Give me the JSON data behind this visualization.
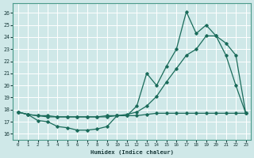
{
  "xlabel": "Humidex (Indice chaleur)",
  "bg_color": "#cfe8e8",
  "grid_color": "#ffffff",
  "line_color": "#1a6b5a",
  "xlim": [
    -0.5,
    23.5
  ],
  "ylim": [
    15.5,
    26.8
  ],
  "yticks": [
    16,
    17,
    18,
    19,
    20,
    21,
    22,
    23,
    24,
    25,
    26
  ],
  "xticks": [
    0,
    1,
    2,
    3,
    4,
    5,
    6,
    7,
    8,
    9,
    10,
    11,
    12,
    13,
    14,
    15,
    16,
    17,
    18,
    19,
    20,
    21,
    22,
    23
  ],
  "series_max_x": [
    0,
    1,
    2,
    3,
    4,
    5,
    6,
    7,
    8,
    9,
    10,
    11,
    12,
    13,
    14,
    15,
    16,
    17,
    18,
    19,
    20,
    21,
    22,
    23
  ],
  "series_max_y": [
    17.8,
    17.6,
    17.1,
    17.0,
    16.6,
    16.5,
    16.3,
    16.3,
    16.4,
    16.6,
    17.5,
    17.5,
    18.3,
    21.0,
    20.0,
    21.6,
    23.0,
    26.1,
    24.3,
    25.0,
    24.1,
    22.5,
    20.0,
    17.7
  ],
  "series_mean_x": [
    0,
    1,
    2,
    3,
    4,
    5,
    6,
    7,
    8,
    9,
    10,
    11,
    12,
    13,
    14,
    15,
    16,
    17,
    18,
    19,
    20,
    21,
    22,
    23
  ],
  "series_mean_y": [
    17.8,
    17.6,
    17.5,
    17.5,
    17.4,
    17.4,
    17.4,
    17.4,
    17.4,
    17.5,
    17.5,
    17.6,
    17.8,
    18.3,
    19.1,
    20.3,
    21.4,
    22.5,
    23.0,
    24.1,
    24.1,
    23.5,
    22.5,
    17.7
  ],
  "series_min_x": [
    0,
    1,
    2,
    3,
    4,
    5,
    6,
    7,
    8,
    9,
    10,
    11,
    12,
    13,
    14,
    15,
    16,
    17,
    18,
    19,
    20,
    21,
    22,
    23
  ],
  "series_min_y": [
    17.8,
    17.6,
    17.5,
    17.4,
    17.4,
    17.4,
    17.4,
    17.4,
    17.4,
    17.4,
    17.5,
    17.5,
    17.5,
    17.6,
    17.7,
    17.7,
    17.7,
    17.7,
    17.7,
    17.7,
    17.7,
    17.7,
    17.7,
    17.7
  ]
}
